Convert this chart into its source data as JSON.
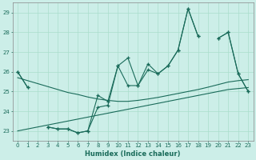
{
  "title": "",
  "xlabel": "Humidex (Indice chaleur)",
  "bg_color": "#cceee8",
  "grid_color": "#aaddcc",
  "line_color": "#1a6b5a",
  "xlim": [
    -0.5,
    23.5
  ],
  "ylim": [
    22.5,
    29.5
  ],
  "x_ticks": [
    0,
    1,
    2,
    3,
    4,
    5,
    6,
    7,
    8,
    9,
    10,
    11,
    12,
    13,
    14,
    15,
    16,
    17,
    18,
    19,
    20,
    21,
    22,
    23
  ],
  "y_ticks": [
    23,
    24,
    25,
    26,
    27,
    28,
    29
  ],
  "y1": [
    26.0,
    25.2,
    null,
    23.2,
    23.1,
    23.1,
    22.9,
    23.0,
    24.8,
    24.5,
    26.3,
    26.7,
    25.3,
    26.4,
    25.9,
    26.3,
    27.1,
    29.2,
    27.8,
    null,
    27.7,
    28.0,
    25.9,
    25.0
  ],
  "y2": [
    26.0,
    25.2,
    null,
    23.2,
    23.1,
    23.1,
    22.9,
    23.0,
    24.2,
    24.3,
    26.3,
    25.3,
    25.3,
    26.1,
    25.9,
    26.3,
    27.1,
    29.2,
    27.8,
    null,
    27.7,
    28.0,
    25.9,
    25.0
  ],
  "trend1": [
    25.7,
    25.55,
    25.4,
    25.25,
    25.1,
    24.95,
    24.85,
    24.72,
    24.62,
    24.55,
    24.5,
    24.5,
    24.55,
    24.62,
    24.7,
    24.8,
    24.9,
    25.0,
    25.1,
    25.22,
    25.35,
    25.48,
    25.55,
    25.6
  ],
  "trend2": [
    23.0,
    23.1,
    23.2,
    23.3,
    23.4,
    23.5,
    23.6,
    23.7,
    23.8,
    23.9,
    24.0,
    24.1,
    24.2,
    24.3,
    24.4,
    24.5,
    24.6,
    24.7,
    24.8,
    24.9,
    25.0,
    25.1,
    25.15,
    25.2
  ]
}
